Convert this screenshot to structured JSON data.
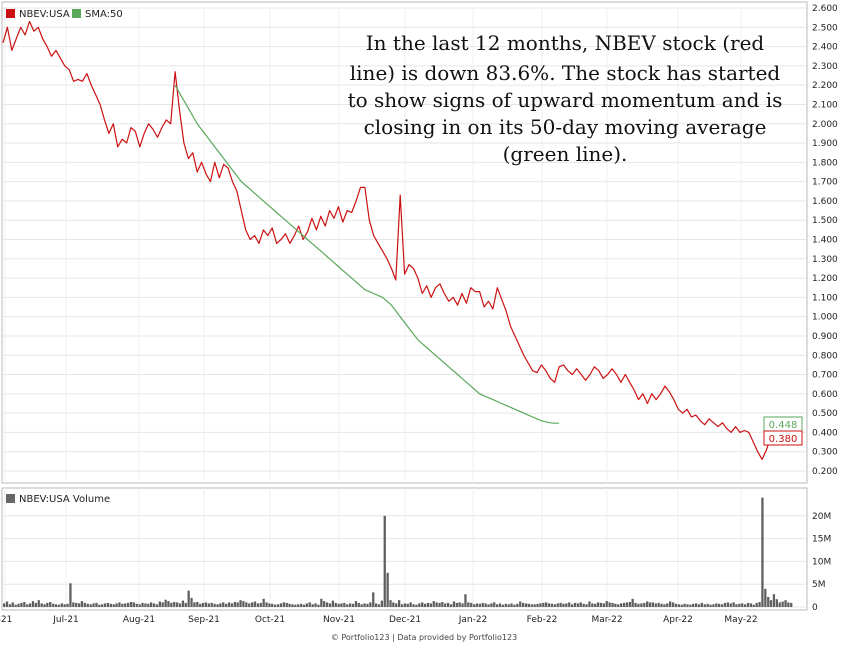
{
  "chart_data": [
    {
      "type": "line",
      "legend": [
        {
          "name": "NBEV:USA",
          "color": "#cc1111"
        },
        {
          "name": "SMA:50",
          "color": "#5aa85a"
        }
      ],
      "annotation": [
        "In the last 12 months, NBEV stock (red",
        "line) is down 83.6%. The stock has started",
        "to show signs of upward momentum and is",
        "closing in on its 50-day moving average",
        "(green line)."
      ],
      "ylim": [
        0.2,
        2.6
      ],
      "yticks": [
        "0.200",
        "0.300",
        "0.400",
        "0.500",
        "0.600",
        "0.700",
        "0.800",
        "0.900",
        "1.000",
        "1.100",
        "1.200",
        "1.300",
        "1.400",
        "1.500",
        "1.600",
        "1.700",
        "1.800",
        "1.900",
        "2.000",
        "2.100",
        "2.200",
        "2.300",
        "2.400",
        "2.500",
        "2.600"
      ],
      "xticks": [
        "-21",
        "Jul-21",
        "Aug-21",
        "Sep-21",
        "Oct-21",
        "Nov-21",
        "Dec-21",
        "Jan-22",
        "Feb-22",
        "Mar-22",
        "Apr-22",
        "May-22"
      ],
      "series": [
        {
          "name": "NBEV:USA",
          "color": "#cc1111",
          "values": [
            2.42,
            2.5,
            2.38,
            2.44,
            2.5,
            2.46,
            2.53,
            2.48,
            2.5,
            2.44,
            2.4,
            2.35,
            2.38,
            2.34,
            2.3,
            2.28,
            2.22,
            2.23,
            2.22,
            2.26,
            2.2,
            2.15,
            2.1,
            2.02,
            1.95,
            2.0,
            1.88,
            1.92,
            1.9,
            1.98,
            1.96,
            1.88,
            1.95,
            2.0,
            1.97,
            1.93,
            1.98,
            2.02,
            2.0,
            2.27,
            2.07,
            1.9,
            1.82,
            1.85,
            1.75,
            1.8,
            1.74,
            1.7,
            1.8,
            1.72,
            1.79,
            1.77,
            1.7,
            1.65,
            1.55,
            1.45,
            1.4,
            1.42,
            1.38,
            1.45,
            1.42,
            1.46,
            1.38,
            1.4,
            1.43,
            1.38,
            1.42,
            1.47,
            1.4,
            1.44,
            1.51,
            1.45,
            1.52,
            1.47,
            1.55,
            1.51,
            1.57,
            1.49,
            1.55,
            1.54,
            1.6,
            1.67,
            1.67,
            1.5,
            1.42,
            1.38,
            1.34,
            1.3,
            1.25,
            1.19,
            1.63,
            1.22,
            1.27,
            1.25,
            1.2,
            1.12,
            1.16,
            1.1,
            1.15,
            1.17,
            1.12,
            1.08,
            1.1,
            1.06,
            1.12,
            1.07,
            1.15,
            1.13,
            1.13,
            1.05,
            1.08,
            1.04,
            1.15,
            1.09,
            1.03,
            0.95,
            0.9,
            0.85,
            0.8,
            0.76,
            0.72,
            0.71,
            0.75,
            0.72,
            0.68,
            0.66,
            0.74,
            0.75,
            0.72,
            0.7,
            0.73,
            0.7,
            0.67,
            0.7,
            0.74,
            0.72,
            0.68,
            0.7,
            0.73,
            0.7,
            0.66,
            0.7,
            0.66,
            0.62,
            0.57,
            0.6,
            0.55,
            0.6,
            0.57,
            0.6,
            0.64,
            0.61,
            0.57,
            0.52,
            0.5,
            0.52,
            0.48,
            0.49,
            0.46,
            0.44,
            0.47,
            0.45,
            0.43,
            0.45,
            0.42,
            0.4,
            0.43,
            0.4,
            0.41,
            0.4,
            0.35,
            0.3,
            0.26,
            0.31,
            0.38,
            0.37,
            0.36,
            0.37,
            0.37,
            0.38
          ]
        },
        {
          "name": "SMA:50",
          "color": "#5aa85a",
          "start_index": 39,
          "values": [
            2.2,
            2.16,
            2.12,
            2.08,
            2.04,
            2.0,
            1.97,
            1.94,
            1.91,
            1.88,
            1.85,
            1.82,
            1.79,
            1.76,
            1.73,
            1.7,
            1.68,
            1.66,
            1.64,
            1.62,
            1.6,
            1.58,
            1.56,
            1.54,
            1.52,
            1.5,
            1.48,
            1.46,
            1.44,
            1.42,
            1.4,
            1.38,
            1.36,
            1.34,
            1.32,
            1.3,
            1.28,
            1.26,
            1.24,
            1.22,
            1.2,
            1.18,
            1.16,
            1.14,
            1.13,
            1.12,
            1.11,
            1.1,
            1.08,
            1.06,
            1.03,
            1.0,
            0.97,
            0.94,
            0.91,
            0.88,
            0.86,
            0.84,
            0.82,
            0.8,
            0.78,
            0.76,
            0.74,
            0.72,
            0.7,
            0.68,
            0.66,
            0.64,
            0.62,
            0.6,
            0.59,
            0.58,
            0.57,
            0.56,
            0.55,
            0.54,
            0.53,
            0.52,
            0.51,
            0.5,
            0.49,
            0.48,
            0.47,
            0.46,
            0.455,
            0.45,
            0.448,
            0.448
          ]
        }
      ],
      "last_values": {
        "NBEV:USA": "0.380",
        "SMA:50": "0.448"
      }
    },
    {
      "type": "bar",
      "legend": [
        {
          "name": "NBEV:USA Volume",
          "color": "#666666"
        }
      ],
      "yticks": [
        "0",
        "5M",
        "10M",
        "15M",
        "20M"
      ],
      "ylim": [
        0,
        25
      ],
      "color": "#5f5f5f",
      "values": [
        0.8,
        1.2,
        0.6,
        1.0,
        0.5,
        0.7,
        0.9,
        1.1,
        0.6,
        0.8,
        1.3,
        0.9,
        1.5,
        0.8,
        0.6,
        0.9,
        1.1,
        0.7,
        0.6,
        0.5,
        0.8,
        0.6,
        0.7,
        5.2,
        1.0,
        0.9,
        0.8,
        1.3,
        0.9,
        0.7,
        0.6,
        0.8,
        0.9,
        0.5,
        0.6,
        0.8,
        0.9,
        0.7,
        0.6,
        0.8,
        1.0,
        0.7,
        0.8,
        0.9,
        1.1,
        1.0,
        0.7,
        0.6,
        0.9,
        0.8,
        0.7,
        1.0,
        0.8,
        0.6,
        1.2,
        1.0,
        1.6,
        1.3,
        0.9,
        1.1,
        1.0,
        0.8,
        1.4,
        0.9,
        3.6,
        2.0,
        1.0,
        1.1,
        0.7,
        0.9,
        1.0,
        0.8,
        0.9,
        0.7,
        0.6,
        0.8,
        1.0,
        0.7,
        1.0,
        0.8,
        1.1,
        1.0,
        1.5,
        1.3,
        1.0,
        0.8,
        1.0,
        1.2,
        0.8,
        0.9,
        1.8,
        1.0,
        0.8,
        0.7,
        0.5,
        0.6,
        0.8,
        1.0,
        0.9,
        0.7,
        0.6,
        0.5,
        0.6,
        0.7,
        0.5,
        0.8,
        1.0,
        0.6,
        0.8,
        0.5,
        1.8,
        1.3,
        1.0,
        0.8,
        1.4,
        0.9,
        0.7,
        0.8,
        0.9,
        0.6,
        0.8,
        0.7,
        1.3,
        0.9,
        0.6,
        0.8,
        0.7,
        1.0,
        3.2,
        0.8,
        0.6,
        1.4,
        20.0,
        7.5,
        1.5,
        1.0,
        0.8,
        1.5,
        0.6,
        0.8,
        0.7,
        1.0,
        0.6,
        0.5,
        0.8,
        1.0,
        0.7,
        0.9,
        0.8,
        1.3,
        1.0,
        0.9,
        1.1,
        0.8,
        0.9,
        0.6,
        1.2,
        0.9,
        1.0,
        0.8,
        2.8,
        1.0,
        0.9,
        0.6,
        0.8,
        0.7,
        0.9,
        0.8,
        0.6,
        0.8,
        1.0,
        0.6,
        0.8,
        0.5,
        0.7,
        0.6,
        0.8,
        0.5,
        0.7,
        1.2,
        0.9,
        0.8,
        0.7,
        0.6,
        0.6,
        0.7,
        0.8,
        0.9,
        1.0,
        0.8,
        0.7,
        0.6,
        0.8,
        0.9,
        0.7,
        0.8,
        1.0,
        0.6,
        0.9,
        0.8,
        1.0,
        0.7,
        0.6,
        1.2,
        0.8,
        0.7,
        1.0,
        0.9,
        0.8,
        1.3,
        1.0,
        0.9,
        0.7,
        0.6,
        0.8,
        0.9,
        1.0,
        1.1,
        1.8,
        0.9,
        0.7,
        0.8,
        0.9,
        1.2,
        1.0,
        1.0,
        0.8,
        0.9,
        0.7,
        0.6,
        0.8,
        1.2,
        1.0,
        0.7,
        0.6,
        0.5,
        0.7,
        0.6,
        0.5,
        0.7,
        0.8,
        0.6,
        0.9,
        0.6,
        0.7,
        0.5,
        0.6,
        0.8,
        0.7,
        0.6,
        0.9,
        1.0,
        0.8,
        1.0,
        0.6,
        0.7,
        0.8,
        0.6,
        0.9,
        0.8,
        0.5,
        0.9,
        1.1,
        24.0,
        4.0,
        2.2,
        1.5,
        2.8,
        1.7,
        1.0,
        1.2,
        1.5,
        1.0,
        0.9
      ]
    }
  ],
  "footer": "© Portfolio123 | Data provided by Portfolio123"
}
